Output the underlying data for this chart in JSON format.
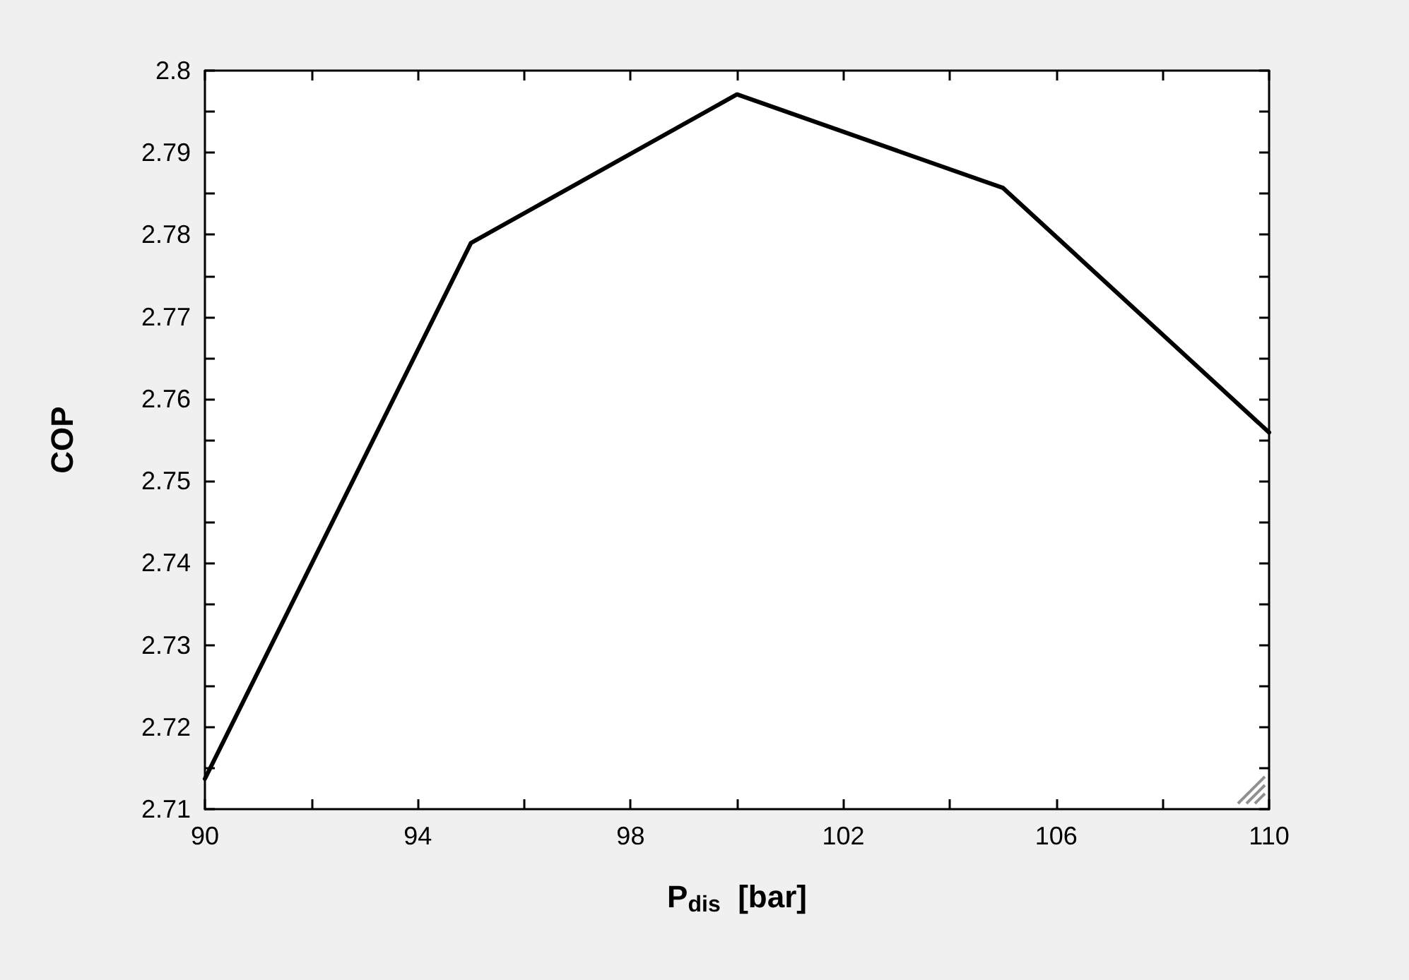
{
  "chart_data": {
    "type": "line",
    "xlabel": "P$_{dis}$  [bar]",
    "ylabel": "COP",
    "x": [
      90,
      95,
      100,
      105,
      110
    ],
    "series": [
      {
        "color": "#000000",
        "values": [
          2.7137,
          2.779,
          2.7971,
          2.7857,
          2.7559
        ]
      }
    ],
    "xlim": [
      90,
      110
    ],
    "xticks": [
      90,
      {
        "value": 92,
        "label": null
      },
      94,
      {
        "value": 96,
        "label": null
      },
      98,
      {
        "value": 100,
        "label": null
      },
      102,
      {
        "value": 104,
        "label": null
      },
      106,
      {
        "value": 108,
        "label": null
      },
      110
    ],
    "ylim": [
      2.71,
      2.8
    ],
    "yticks": [
      2.71,
      {
        "value": 2.715,
        "label": null
      },
      2.72,
      {
        "value": 2.725,
        "label": null
      },
      2.73,
      {
        "value": 2.735,
        "label": null
      },
      2.74,
      {
        "value": 2.745,
        "label": null
      },
      2.75,
      {
        "value": 2.755,
        "label": null
      },
      2.76,
      {
        "value": 2.765,
        "label": null
      },
      2.77,
      {
        "value": 2.775,
        "label": null
      },
      2.78,
      {
        "value": 2.785,
        "label": null
      },
      2.79,
      {
        "value": 2.795,
        "label": null
      },
      2.8
    ],
    "grid": false,
    "marker": "none",
    "line_style": "solid"
  }
}
